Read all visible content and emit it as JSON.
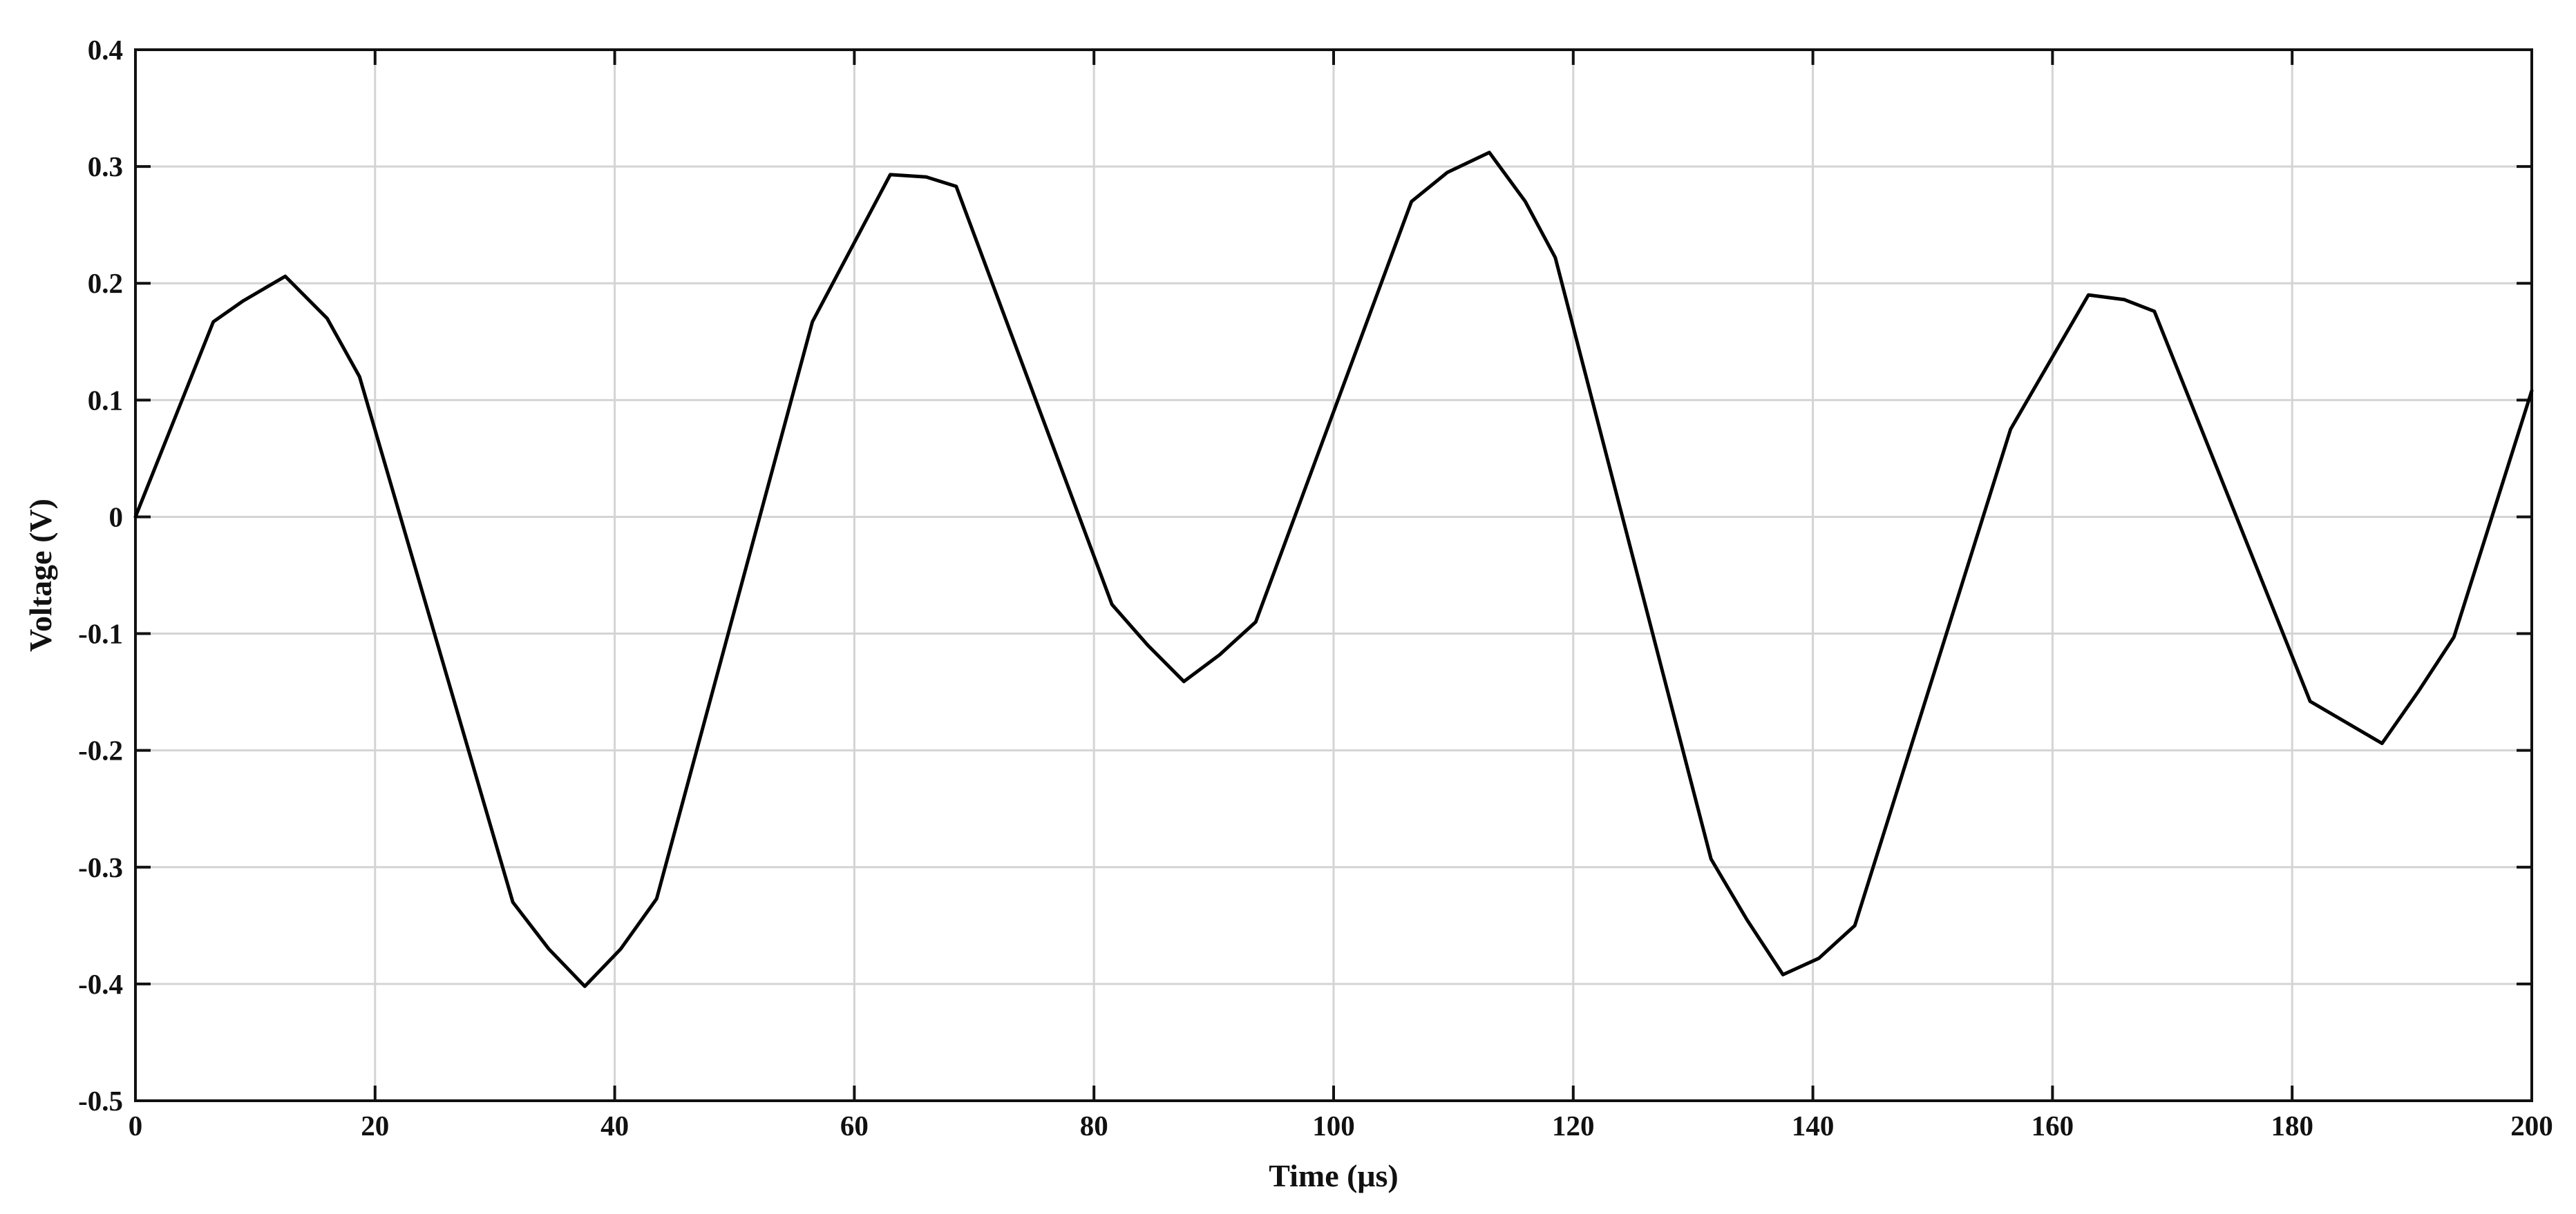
{
  "chart_data": {
    "type": "line",
    "title": "",
    "xlabel": "Time (μs)",
    "ylabel": "Voltage (V)",
    "xlim": [
      0,
      200
    ],
    "ylim": [
      -0.5,
      0.4
    ],
    "xticks": [
      0,
      20,
      40,
      60,
      80,
      100,
      120,
      140,
      160,
      180,
      200
    ],
    "yticks": [
      -0.5,
      -0.4,
      -0.3,
      -0.2,
      -0.1,
      0,
      0.1,
      0.2,
      0.3,
      0.4
    ],
    "xtick_labels": [
      "0",
      "20",
      "40",
      "60",
      "80",
      "100",
      "120",
      "140",
      "160",
      "180",
      "200"
    ],
    "ytick_labels": [
      "-0.5",
      "-0.4",
      "-0.3",
      "-0.2",
      "-0.1",
      "0",
      "0.1",
      "0.2",
      "0.3",
      "0.4"
    ],
    "grid": true,
    "box": true,
    "series": [
      {
        "color": "#000000",
        "x": [
          0,
          6.5,
          9,
          12.5,
          16,
          18.7,
          31.5,
          34.5,
          37.5,
          40.5,
          43.5,
          56.5,
          63,
          66,
          68.5,
          81.5,
          84.5,
          87.5,
          90.5,
          93.5,
          106.5,
          109.5,
          113,
          116,
          118.5,
          131.5,
          134.5,
          137.5,
          140.5,
          143.5,
          156.5,
          163,
          166,
          168.5,
          181.5,
          187.5,
          190.5,
          193.5,
          200
        ],
        "values": [
          0.0,
          0.167,
          0.185,
          0.206,
          0.17,
          0.12,
          -0.33,
          -0.37,
          -0.402,
          -0.37,
          -0.327,
          0.167,
          0.293,
          0.291,
          0.283,
          -0.075,
          -0.11,
          -0.141,
          -0.118,
          -0.09,
          0.27,
          0.295,
          0.312,
          0.27,
          0.222,
          -0.293,
          -0.345,
          -0.392,
          -0.378,
          -0.35,
          0.075,
          0.19,
          0.186,
          0.176,
          -0.158,
          -0.194,
          -0.15,
          -0.103,
          0.108
        ]
      }
    ]
  }
}
